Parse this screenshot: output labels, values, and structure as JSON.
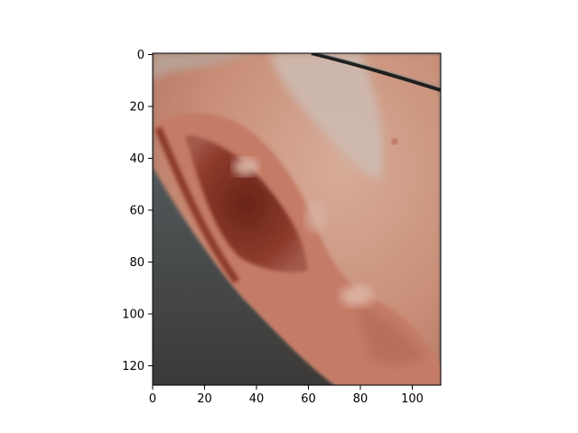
{
  "image_view": {
    "type": "image",
    "title": "",
    "xlabel": "",
    "ylabel": "",
    "xlim": [
      0,
      111
    ],
    "ylim": [
      128,
      0
    ],
    "x_ticks": [
      "0",
      "20",
      "40",
      "60",
      "80",
      "100"
    ],
    "y_ticks": [
      "0",
      "20",
      "40",
      "60",
      "80",
      "100",
      "120"
    ],
    "grid": false,
    "colors": {
      "background": "#505a5e",
      "skin": "#c88e77",
      "skin_highlight": "#dcb5a4",
      "ear_inner": "#8a3a2a",
      "shadow": "#3f3a37",
      "glasses_arm": "#1f1f1f"
    }
  }
}
